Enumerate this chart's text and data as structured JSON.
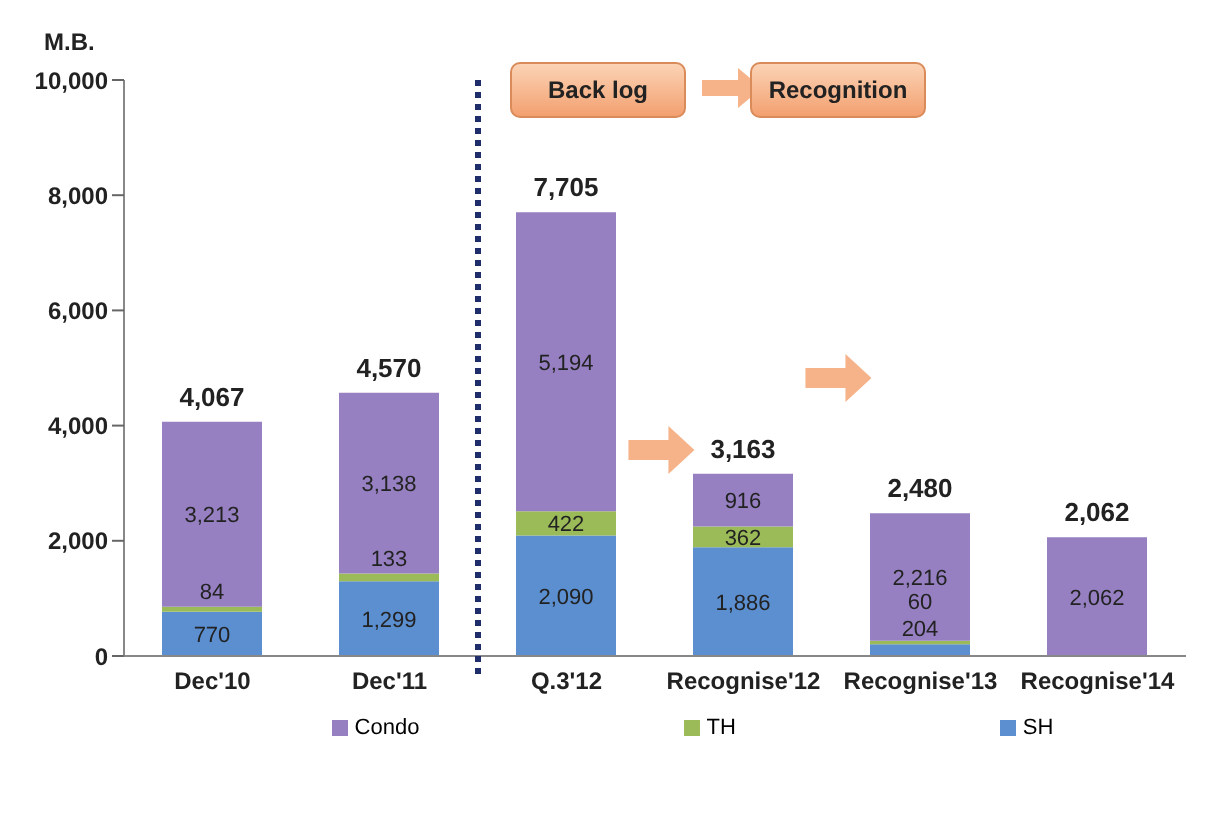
{
  "chart_data": {
    "type": "bar",
    "stacked": true,
    "ylabel": "M.B.",
    "categories": [
      "Dec'10",
      "Dec'11",
      "Q.3'12",
      "Recognise'12",
      "Recognise'13",
      "Recognise'14"
    ],
    "series": [
      {
        "name": "SH",
        "color": "#5b8fd0",
        "values": [
          770,
          1299,
          2090,
          1886,
          204,
          null
        ],
        "value_labels": [
          "770",
          "1,299",
          "2,090",
          "1,886",
          "204",
          null
        ]
      },
      {
        "name": "TH",
        "color": "#9bbb59",
        "values": [
          84,
          133,
          422,
          362,
          60,
          null
        ],
        "value_labels": [
          "84",
          "133",
          "422",
          "362",
          "60",
          null
        ]
      },
      {
        "name": "Condo",
        "color": "#9680c2",
        "values": [
          3213,
          3138,
          5194,
          916,
          2216,
          2062
        ],
        "value_labels": [
          "3,213",
          "3,138",
          "5,194",
          "916",
          "2,216",
          "2,062"
        ]
      }
    ],
    "totals": [
      "4,067",
      "4,570",
      "7,705",
      "3,163",
      "2,480",
      "2,062"
    ],
    "ylim": [
      0,
      10000
    ],
    "yticks": [
      0,
      {
        "value": 2000,
        "label": "2,000"
      },
      {
        "value": 4000,
        "label": "4,000"
      },
      {
        "value": 6000,
        "label": "6,000"
      },
      {
        "value": 8000,
        "label": "8,000"
      },
      {
        "value": 10000,
        "label": "10,000"
      }
    ],
    "grid": false,
    "legend": "bottom",
    "annotations": [
      "Back log",
      "Recognition"
    ]
  }
}
